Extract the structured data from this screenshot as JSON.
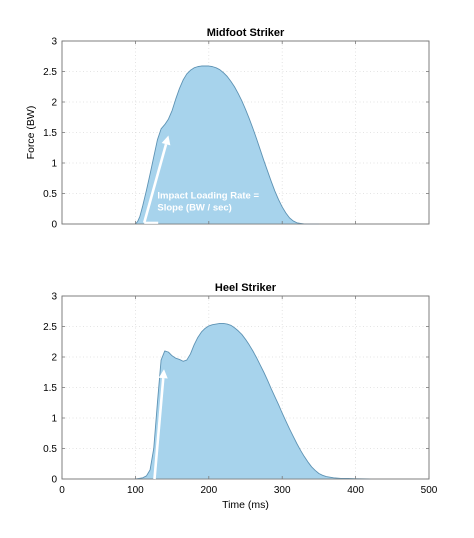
{
  "chart_data": [
    {
      "type": "area",
      "title": "Midfoot Striker",
      "xlabel": "",
      "ylabel": "Force (BW)",
      "xlim": [
        0,
        500
      ],
      "ylim": [
        0,
        3
      ],
      "x_ticks": [
        "0",
        "100",
        "200",
        "300",
        "400",
        "500"
      ],
      "y_ticks": [
        "0",
        "0.5",
        "1",
        "1.5",
        "2",
        "2.5",
        "3"
      ],
      "show_x_tick_labels": false,
      "grid": true,
      "fill_color": "#a7d3ec",
      "line_color": "#5e93b4",
      "annotation_color": "#ffffff",
      "annotation_lines": [
        "Impact Loading Rate =",
        "Slope (BW / sec)"
      ],
      "annotation_at": [
        130,
        0.42
      ],
      "arrow": {
        "from": [
          112,
          0.02
        ],
        "to": [
          145,
          1.45
        ]
      },
      "series": [
        {
          "x": [
            100,
            103,
            106,
            110,
            115,
            120,
            125,
            130,
            135,
            140,
            145,
            150,
            155,
            160,
            165,
            170,
            175,
            180,
            185,
            190,
            195,
            200,
            205,
            210,
            215,
            220,
            225,
            230,
            235,
            240,
            245,
            250,
            255,
            260,
            265,
            270,
            275,
            280,
            285,
            290,
            295,
            300,
            305,
            310,
            315,
            320,
            325,
            330,
            335,
            340,
            345,
            350
          ],
          "y": [
            0,
            0.04,
            0.12,
            0.3,
            0.55,
            0.82,
            1.1,
            1.38,
            1.56,
            1.63,
            1.72,
            1.86,
            2.05,
            2.22,
            2.36,
            2.46,
            2.52,
            2.56,
            2.58,
            2.59,
            2.59,
            2.59,
            2.58,
            2.56,
            2.53,
            2.48,
            2.42,
            2.34,
            2.25,
            2.14,
            2.02,
            1.88,
            1.73,
            1.57,
            1.4,
            1.22,
            1.04,
            0.87,
            0.7,
            0.54,
            0.4,
            0.28,
            0.18,
            0.1,
            0.05,
            0.02,
            0.01,
            0,
            0,
            0,
            0,
            0
          ]
        }
      ]
    },
    {
      "type": "area",
      "title": "Heel Striker",
      "xlabel": "Time (ms)",
      "ylabel": "",
      "xlim": [
        0,
        500
      ],
      "ylim": [
        0,
        3
      ],
      "x_ticks": [
        "0",
        "100",
        "200",
        "300",
        "400",
        "500"
      ],
      "y_ticks": [
        "0",
        "0.5",
        "1",
        "1.5",
        "2",
        "2.5",
        "3"
      ],
      "show_x_tick_labels": true,
      "grid": true,
      "fill_color": "#a7d3ec",
      "line_color": "#5e93b4",
      "annotation_color": "#ffffff",
      "annotation_lines": [],
      "annotation_at": [
        0,
        0
      ],
      "arrow": {
        "from": [
          126,
          0
        ],
        "to": [
          139,
          1.8
        ]
      },
      "series": [
        {
          "x": [
            100,
            105,
            110,
            115,
            120,
            125,
            130,
            135,
            140,
            145,
            150,
            155,
            160,
            165,
            170,
            175,
            180,
            185,
            190,
            195,
            200,
            205,
            210,
            215,
            220,
            225,
            230,
            235,
            240,
            245,
            250,
            255,
            260,
            265,
            270,
            275,
            280,
            285,
            290,
            295,
            300,
            305,
            310,
            315,
            320,
            325,
            330,
            335,
            340,
            345,
            350,
            355,
            360,
            370,
            380,
            390,
            400,
            410,
            420
          ],
          "y": [
            0,
            0.01,
            0.02,
            0.05,
            0.15,
            0.5,
            1.25,
            1.95,
            2.1,
            2.08,
            2.02,
            1.98,
            1.96,
            1.93,
            1.95,
            2.05,
            2.2,
            2.32,
            2.41,
            2.47,
            2.51,
            2.53,
            2.54,
            2.55,
            2.55,
            2.54,
            2.52,
            2.48,
            2.43,
            2.37,
            2.29,
            2.2,
            2.1,
            1.99,
            1.87,
            1.75,
            1.62,
            1.48,
            1.35,
            1.22,
            1.08,
            0.95,
            0.82,
            0.7,
            0.58,
            0.47,
            0.37,
            0.28,
            0.2,
            0.14,
            0.09,
            0.06,
            0.04,
            0.02,
            0.01,
            0.01,
            0.005,
            0.002,
            0
          ]
        }
      ]
    }
  ]
}
